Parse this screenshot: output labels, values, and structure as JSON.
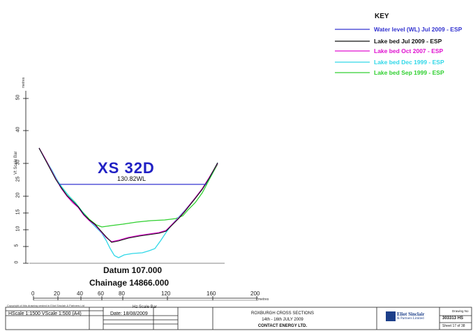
{
  "key": {
    "title": "KEY",
    "items": [
      {
        "label": "Water level (WL) Jul 2009 - ESP",
        "color": "#3434d0"
      },
      {
        "label": "Lake bed Jul 2009 - ESP",
        "color": "#111111"
      },
      {
        "label": "Lake bed Oct 2007 - ESP",
        "color": "#e010d0"
      },
      {
        "label": "Lake bed Dec 1999 - ESP",
        "color": "#30d8e8"
      },
      {
        "label": "Lake bed Sep 1999 - ESP",
        "color": "#30d030"
      }
    ]
  },
  "section": {
    "title": "XS 32D",
    "wl_label": "130.82WL",
    "datum": "Datum 107.000",
    "chainage": "Chainage 14866.000"
  },
  "axes": {
    "y_ticks": [
      "0",
      "5",
      "10",
      "15",
      "20",
      "25",
      "30",
      "40",
      "50"
    ],
    "y_unit": "metres",
    "y_scale_label": "Vt Scale Bar",
    "x_ticks": [
      "0",
      "20",
      "40",
      "60",
      "80",
      "120",
      "160",
      "200"
    ],
    "x_unit": "metres",
    "x_scale_label": "Hz Scale Bar"
  },
  "title_block": {
    "copyright": "Copyright of this drawing vested in Eliot Sinclair & Partners Ltd",
    "scale": "HScale 1:1500  VScale 1:500 (A4)",
    "date": "Date: 18/08/2009",
    "project_line1": "ROXBURGH CROSS SECTIONS",
    "project_line2": "14th - 16th JULY 2009",
    "project_line3": "CONTACT ENERGY LTD.",
    "company_name": "Eliot Sinclair",
    "company_sub": "& Partners Limited",
    "drawing_no_label": "Drawing No",
    "drawing_no": "303313 HS",
    "sheet": "Sheet 17 of 38"
  }
}
